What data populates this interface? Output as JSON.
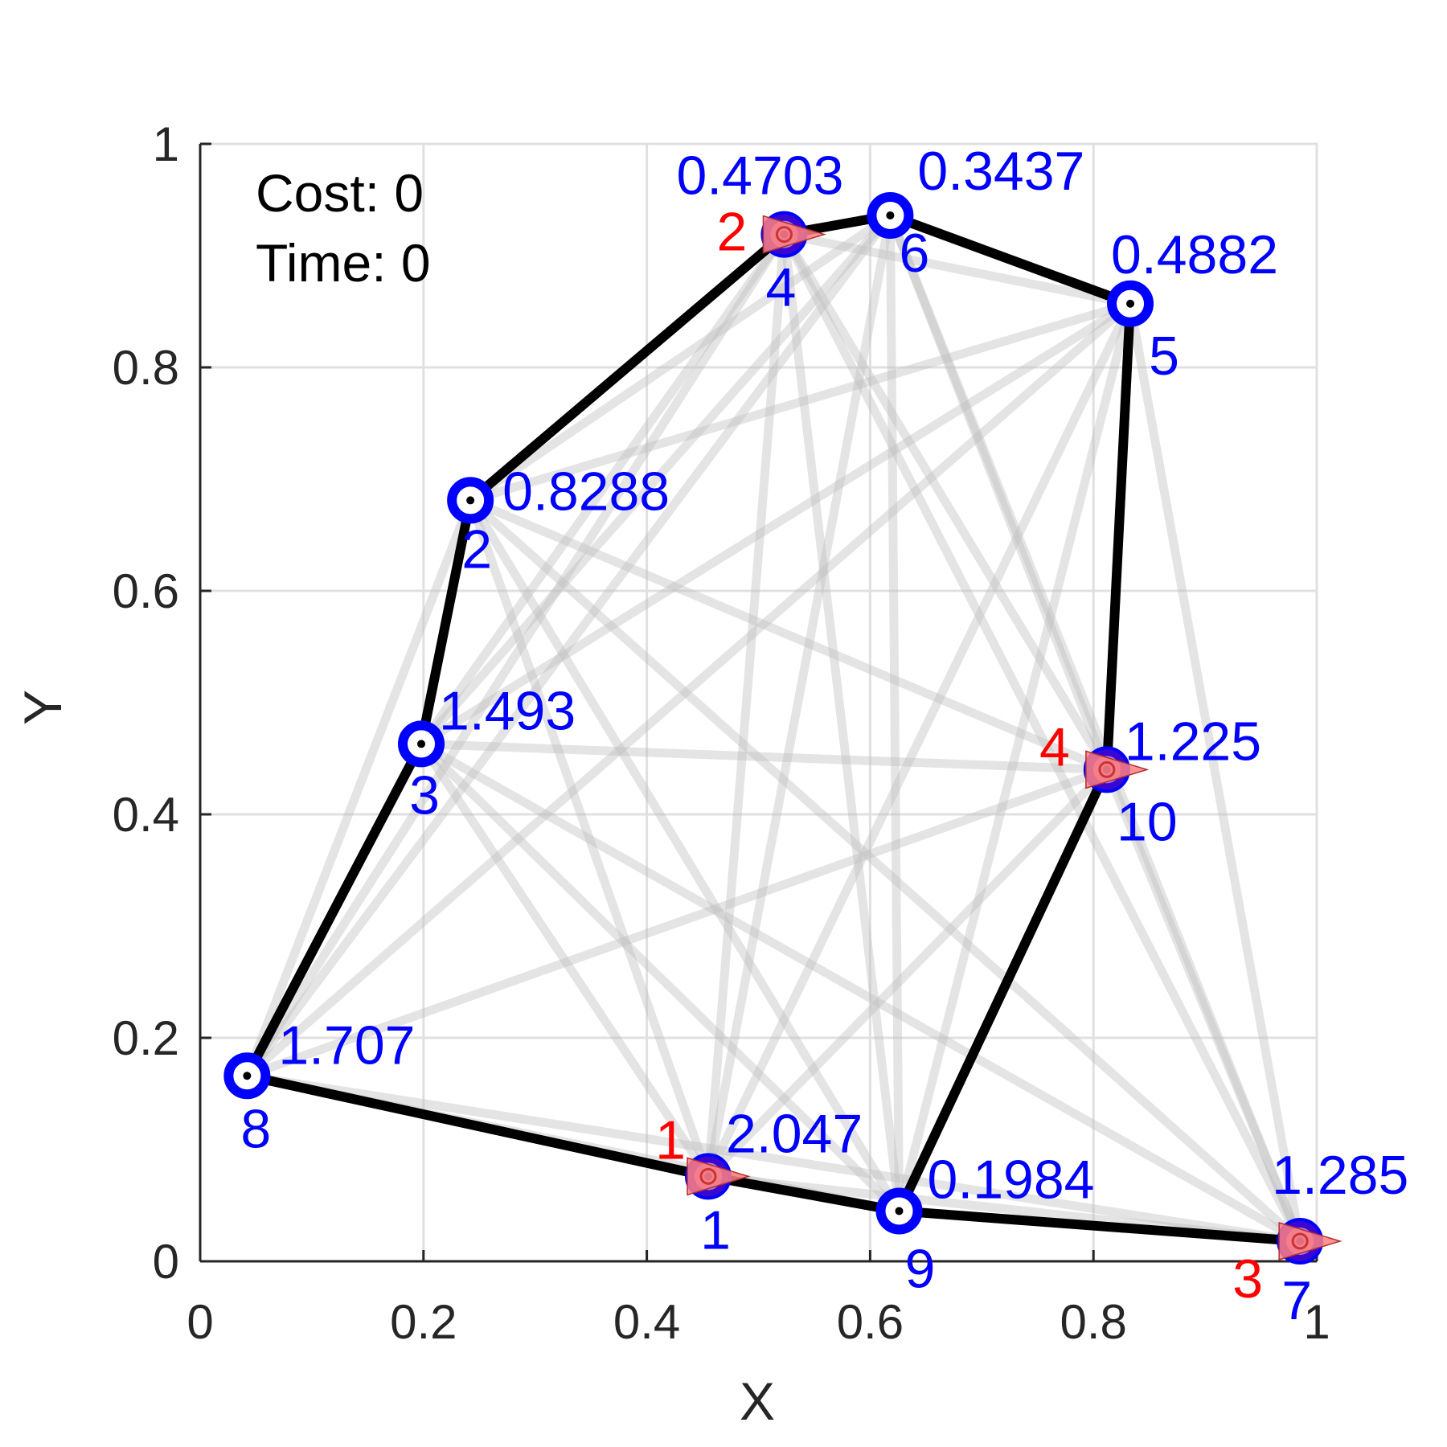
{
  "annotations": {
    "cost": "Cost: 0",
    "time": "Time: 0"
  },
  "chart_data": {
    "type": "scatter",
    "xlabel": "X",
    "ylabel": "Y",
    "xlim": [
      0,
      1
    ],
    "ylim": [
      0,
      1
    ],
    "xticks": [
      "0",
      "0.2",
      "0.4",
      "0.6",
      "0.8",
      "1"
    ],
    "yticks": [
      "0",
      "0.2",
      "0.4",
      "0.6",
      "0.8",
      "1"
    ],
    "grid": true,
    "colors": {
      "node": "#0000ff",
      "tour": "#000000",
      "candidate_edge": "#bfbfbf",
      "agent_fill": "#ff8080",
      "agent_label": "#ff0000",
      "text": "#262626"
    },
    "nodes": [
      {
        "id": "1",
        "x": 0.455,
        "y": 0.076,
        "value": "2.047"
      },
      {
        "id": "2",
        "x": 0.242,
        "y": 0.681,
        "value": "0.8288"
      },
      {
        "id": "3",
        "x": 0.198,
        "y": 0.463,
        "value": "1.493"
      },
      {
        "id": "4",
        "x": 0.523,
        "y": 0.919,
        "value": "0.4703"
      },
      {
        "id": "5",
        "x": 0.833,
        "y": 0.857,
        "value": "0.4882"
      },
      {
        "id": "6",
        "x": 0.618,
        "y": 0.936,
        "value": "0.3437"
      },
      {
        "id": "7",
        "x": 0.985,
        "y": 0.018,
        "value": "1.285"
      },
      {
        "id": "8",
        "x": 0.042,
        "y": 0.166,
        "value": "1.707"
      },
      {
        "id": "9",
        "x": 0.626,
        "y": 0.045,
        "value": "0.1984"
      },
      {
        "id": "10",
        "x": 0.812,
        "y": 0.44,
        "value": "1.225"
      }
    ],
    "tour": [
      "8",
      "3",
      "2",
      "4",
      "6",
      "5",
      "10",
      "9",
      "7",
      "9",
      "1",
      "8"
    ],
    "agents": [
      {
        "label": "1",
        "node": "1"
      },
      {
        "label": "2",
        "node": "4"
      },
      {
        "label": "3",
        "node": "7"
      },
      {
        "label": "4",
        "node": "10"
      }
    ]
  }
}
